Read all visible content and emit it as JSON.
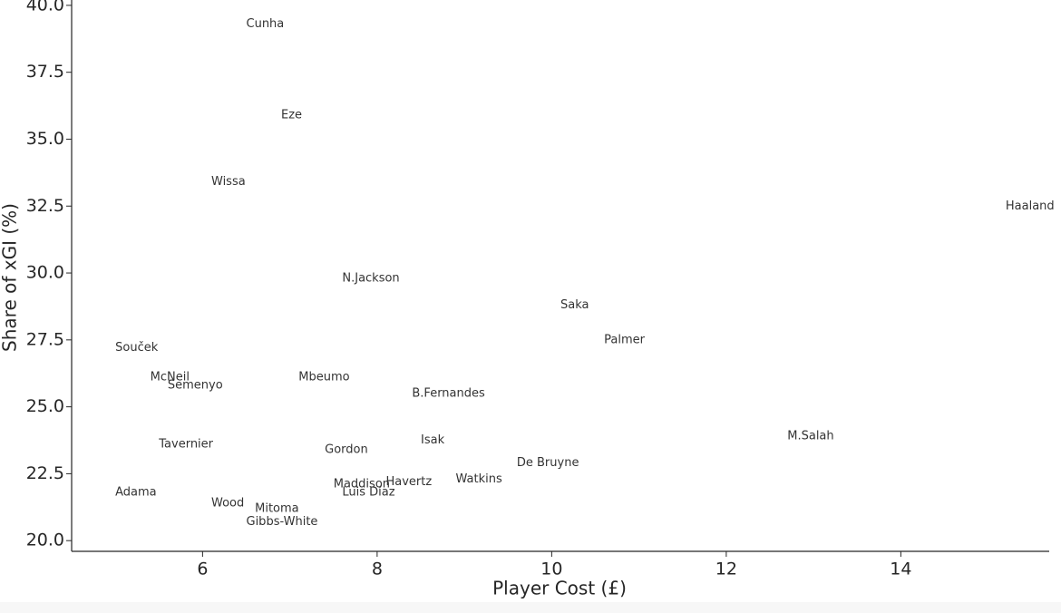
{
  "chart_data": {
    "type": "scatter",
    "x_label": "Player Cost (£)",
    "y_label": "Share of xGI (%)",
    "labels": [
      "Cunha",
      "Eze",
      "Wissa",
      "Haaland",
      "N.Jackson",
      "Saka",
      "Palmer",
      "Souček",
      "McNeil",
      "Semenyo",
      "Mbeumo",
      "B.Fernandes",
      "Tavernier",
      "Gordon",
      "Isak",
      "M.Salah",
      "De Bruyne",
      "Watkins",
      "Havertz",
      "Maddison",
      "Luis Díaz",
      "Adama",
      "Wood",
      "Mitoma",
      "Gibbs-White"
    ],
    "x": [
      6.5,
      6.9,
      6.1,
      15.2,
      7.6,
      10.1,
      10.6,
      5.0,
      5.4,
      5.6,
      7.1,
      8.4,
      5.5,
      7.4,
      8.5,
      12.7,
      9.6,
      8.9,
      8.1,
      7.5,
      7.6,
      5.0,
      6.1,
      6.6,
      6.5
    ],
    "y": [
      39.3,
      35.9,
      33.4,
      32.5,
      29.8,
      28.8,
      27.5,
      27.2,
      26.1,
      25.8,
      26.1,
      25.5,
      23.6,
      23.4,
      23.75,
      23.9,
      22.9,
      22.3,
      22.2,
      22.1,
      21.8,
      21.8,
      21.4,
      21.2,
      20.7
    ],
    "xlim": [
      4.5,
      15.7
    ],
    "ylim": [
      19.6,
      40.2
    ],
    "xticks": [
      6,
      8,
      10,
      12,
      14
    ],
    "yticks": [
      {
        "value": 20,
        "label": "20.0"
      },
      22.5,
      {
        "value": 25,
        "label": "25.0"
      },
      27.5,
      {
        "value": 30,
        "label": "30.0"
      },
      32.5,
      {
        "value": 35,
        "label": "35.0"
      },
      37.5,
      {
        "value": 40,
        "label": "40.0"
      }
    ]
  }
}
